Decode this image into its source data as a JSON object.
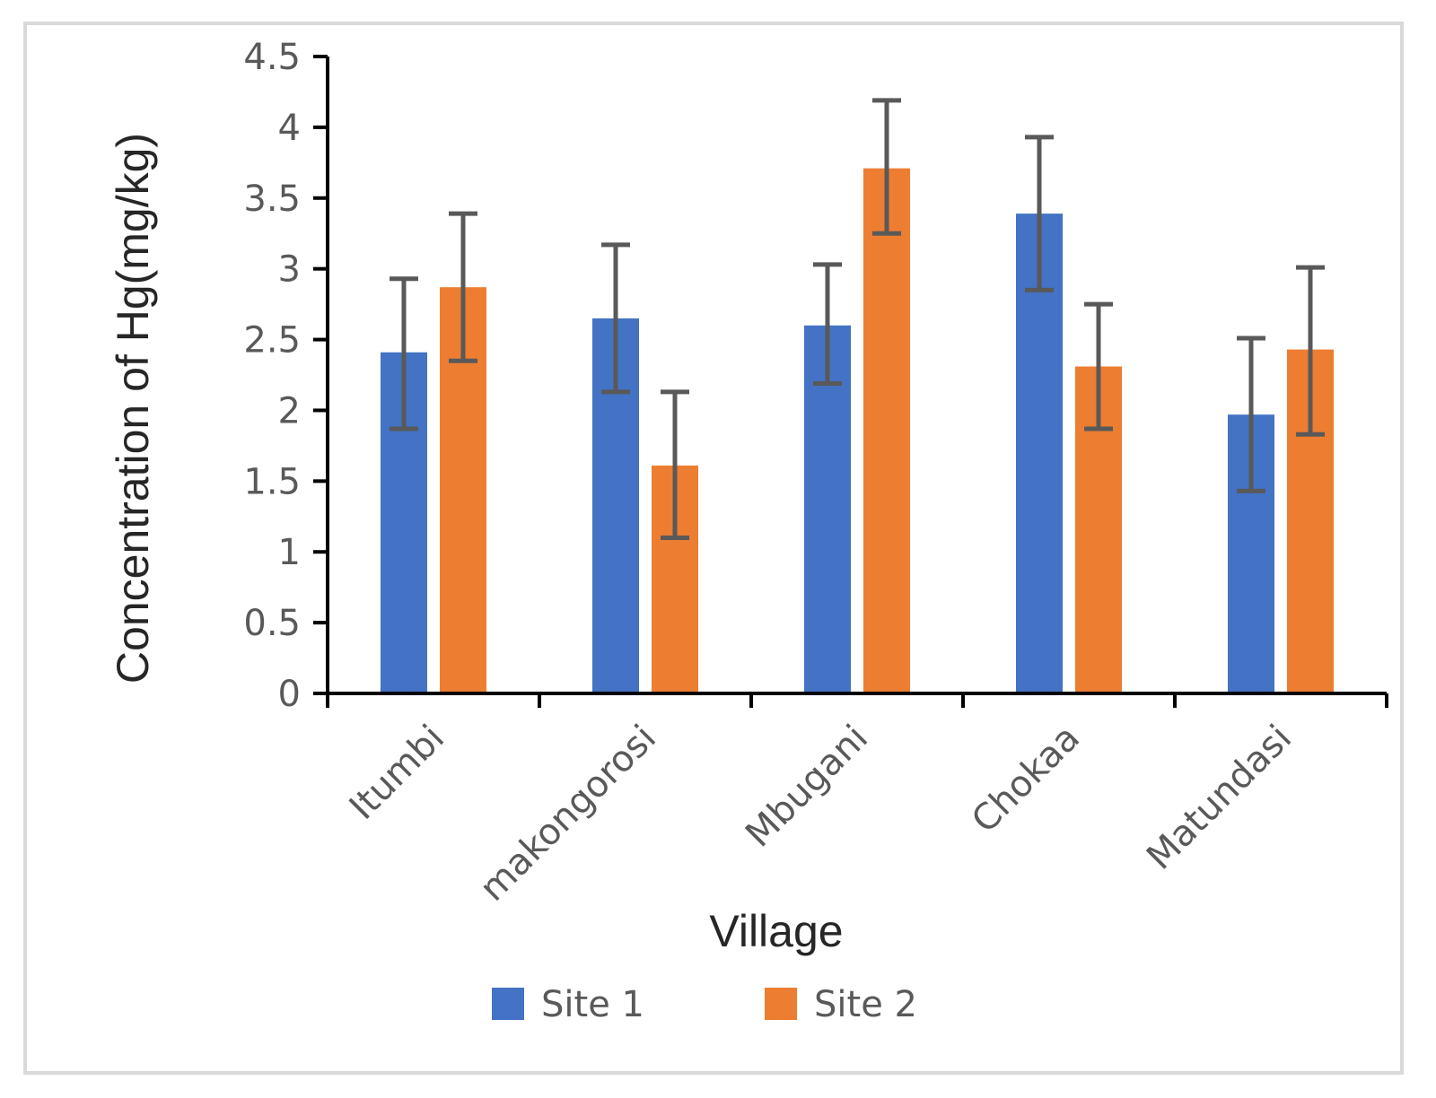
{
  "chart_data": {
    "type": "bar",
    "title": "",
    "xlabel": "Village",
    "ylabel": "Concentration of Hg(mg/kg)",
    "ylim": [
      0,
      4.5
    ],
    "yticks": [
      0,
      0.5,
      1,
      1.5,
      2,
      2.5,
      3,
      3.5,
      4,
      4.5
    ],
    "ytick_labels": [
      "0",
      "0.5",
      "1",
      "1.5",
      "2",
      "2.5",
      "3",
      "3.5",
      "4",
      "4.5"
    ],
    "grid": false,
    "legend_position": "bottom",
    "categories": [
      "Itumbi",
      "makongorosi",
      "Mbugani",
      "Chokaa",
      "Matundasi"
    ],
    "series": [
      {
        "name": "Site 1",
        "color": "#4472C4",
        "values": [
          2.41,
          2.65,
          2.6,
          3.39,
          1.97
        ],
        "error_upper": [
          2.93,
          3.17,
          3.03,
          3.93,
          2.51
        ],
        "error_lower": [
          1.87,
          2.13,
          2.19,
          2.85,
          1.43
        ]
      },
      {
        "name": "Site 2",
        "color": "#ED7D31",
        "values": [
          2.87,
          1.61,
          3.71,
          2.31,
          2.43
        ],
        "error_upper": [
          3.39,
          2.13,
          4.19,
          2.75,
          3.01
        ],
        "error_lower": [
          2.35,
          1.1,
          3.25,
          1.87,
          1.83
        ]
      }
    ],
    "error_bar_color": "#595959",
    "axis_color": "#000000"
  }
}
